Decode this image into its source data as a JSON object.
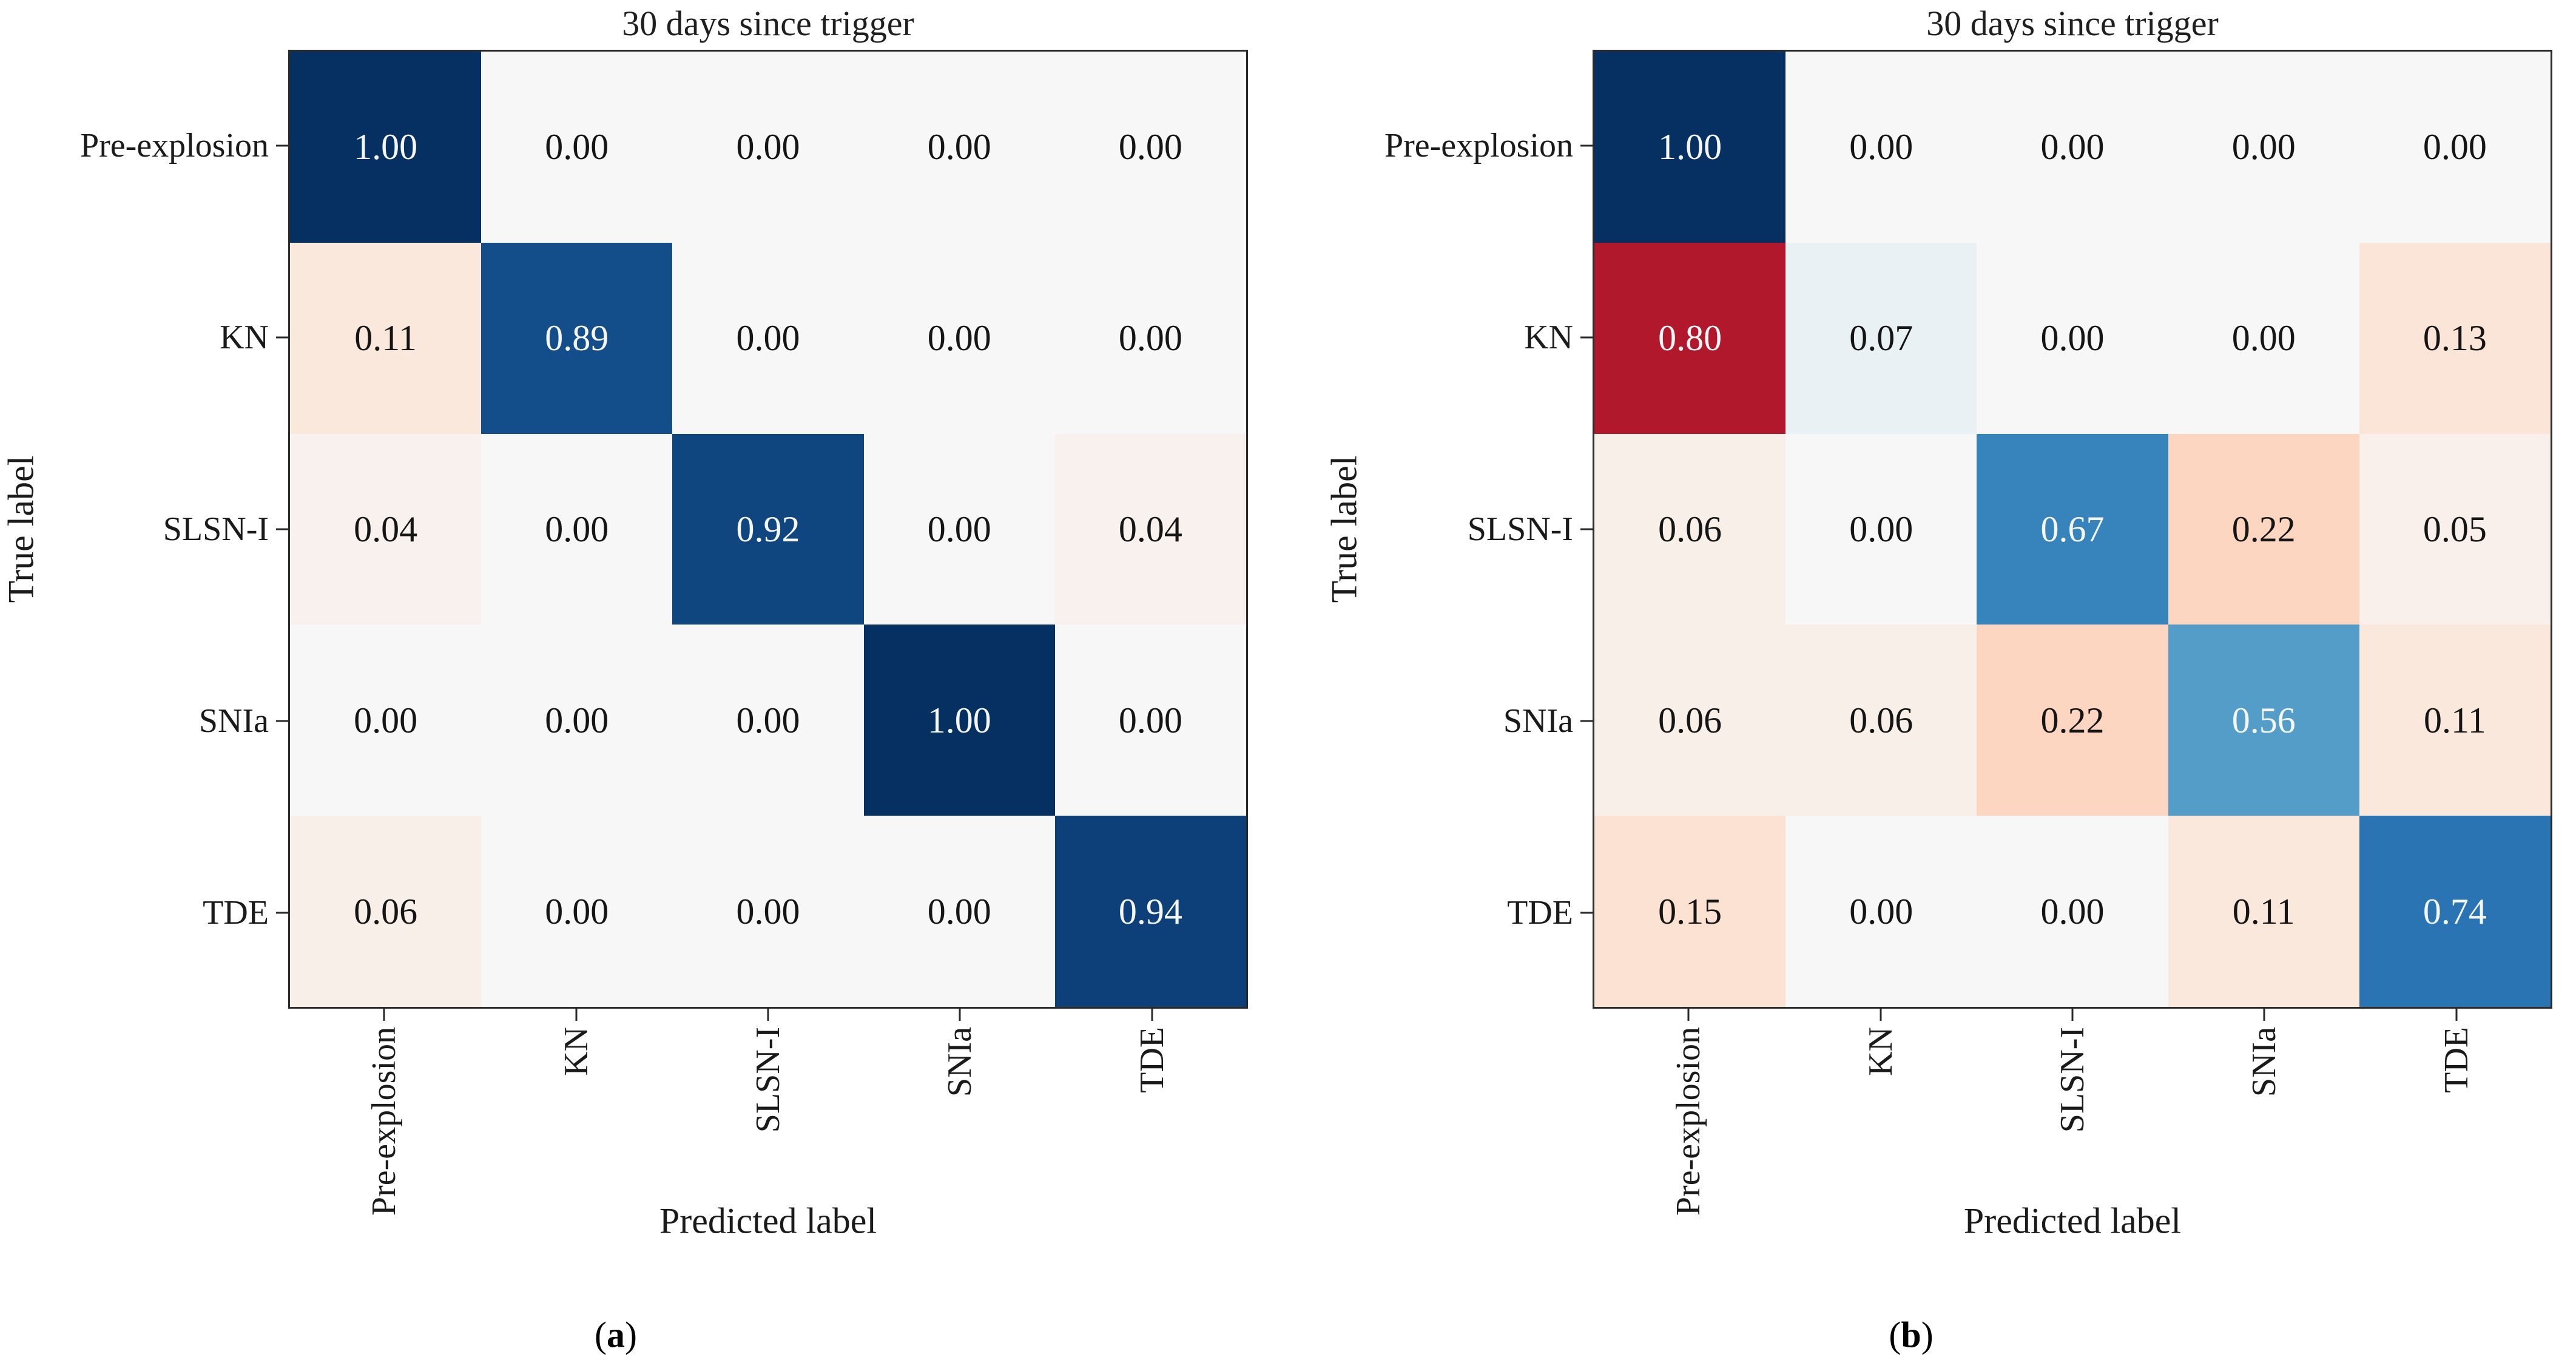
{
  "figure": {
    "description_title": "30 days since trigger",
    "style": {
      "colormap_stops": [
        "#67001f",
        "#b2182b",
        "#d6604d",
        "#f4a582",
        "#fddbc7",
        "#f7f7f7",
        "#d1e5f0",
        "#92c5de",
        "#4393c3",
        "#2166ac",
        "#053061"
      ],
      "cell_text_light": "#f5f6f8",
      "cell_text_dark": "#151515",
      "light_text_threshold": 0.5,
      "spine_color": "#2a2a2a",
      "background": "#ffffff",
      "zero_cell_color": "#f7f7f7",
      "diagonal_full_color": "#053061",
      "offdiagonal_high_color": "#b2182b"
    }
  },
  "chart_data": [
    {
      "type": "heatmap",
      "title": "30 days since trigger",
      "xlabel": "Predicted label",
      "ylabel": "True label",
      "caption_open": "(",
      "caption_letter": "a",
      "caption_close": ")",
      "x_tick_labels": [
        "Pre-explosion",
        "KN",
        "SLSN-I",
        "SNIa",
        "TDE"
      ],
      "y_tick_labels": [
        "Pre-explosion",
        "KN",
        "SLSN-I",
        "SNIa",
        "TDE"
      ],
      "matrix": [
        [
          1.0,
          0.0,
          0.0,
          0.0,
          0.0
        ],
        [
          0.11,
          0.89,
          0.0,
          0.0,
          0.0
        ],
        [
          0.04,
          0.0,
          0.92,
          0.0,
          0.04
        ],
        [
          0.0,
          0.0,
          0.0,
          1.0,
          0.0
        ],
        [
          0.06,
          0.0,
          0.0,
          0.0,
          0.94
        ]
      ],
      "value_decimals": 2,
      "colormap": "RdBu: diagonal cells blue scale, off-diagonal cells red scale",
      "legend": "none",
      "grid": "off"
    },
    {
      "type": "heatmap",
      "title": "30 days since trigger",
      "xlabel": "Predicted label",
      "ylabel": "True label",
      "caption_open": "(",
      "caption_letter": "b",
      "caption_close": ")",
      "x_tick_labels": [
        "Pre-explosion",
        "KN",
        "SLSN-I",
        "SNIa",
        "TDE"
      ],
      "y_tick_labels": [
        "Pre-explosion",
        "KN",
        "SLSN-I",
        "SNIa",
        "TDE"
      ],
      "matrix": [
        [
          1.0,
          0.0,
          0.0,
          0.0,
          0.0
        ],
        [
          0.8,
          0.07,
          0.0,
          0.0,
          0.13
        ],
        [
          0.06,
          0.0,
          0.67,
          0.22,
          0.05
        ],
        [
          0.06,
          0.06,
          0.22,
          0.56,
          0.11
        ],
        [
          0.15,
          0.0,
          0.0,
          0.11,
          0.74
        ]
      ],
      "value_decimals": 2,
      "colormap": "RdBu: diagonal cells blue scale, off-diagonal cells red scale",
      "legend": "none",
      "grid": "off"
    }
  ]
}
